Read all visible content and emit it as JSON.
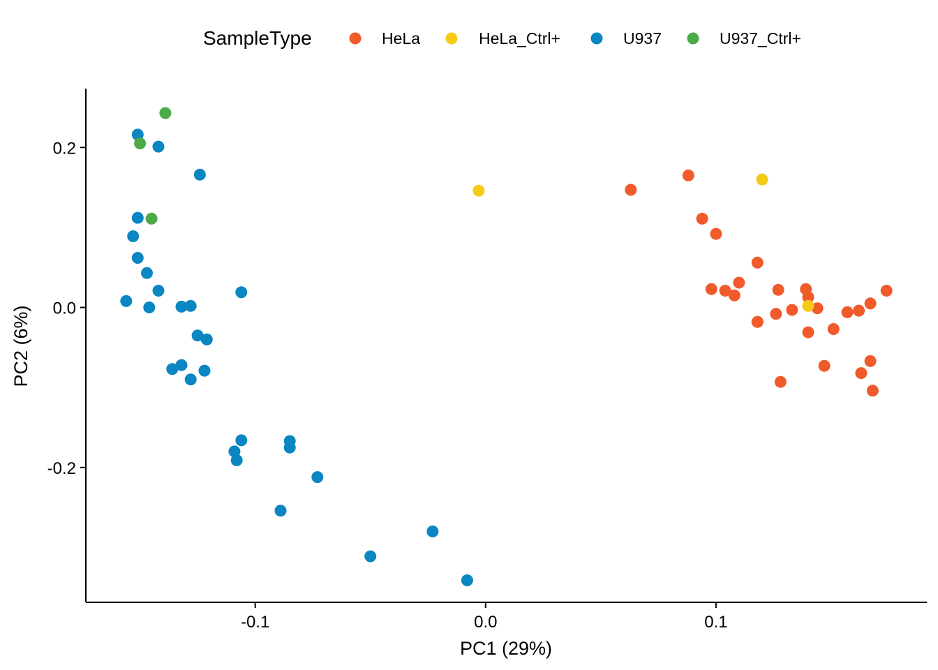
{
  "legend": {
    "title": "SampleType",
    "placement": "top",
    "entries": [
      {
        "label": "HeLa",
        "color": "#F15A2B"
      },
      {
        "label": "HeLa_Ctrl+",
        "color": "#F6C915"
      },
      {
        "label": "U937",
        "color": "#0A86C2"
      },
      {
        "label": "U937_Ctrl+",
        "color": "#4CAA48"
      }
    ]
  },
  "chart_data": {
    "type": "scatter",
    "title": "",
    "xlabel": "PC1 (29%)",
    "ylabel": "PC2 (6%)",
    "xlim": [
      -0.1735,
      0.1915
    ],
    "ylim": [
      -0.3685,
      0.2735
    ],
    "xticks": [
      -0.1,
      0.0,
      0.1
    ],
    "xtick_labels": [
      "-0.1",
      "0.0",
      "0.1"
    ],
    "yticks": [
      -0.2,
      0.0,
      0.2
    ],
    "ytick_labels": [
      "-0.2",
      "0.0",
      "0.2"
    ],
    "grid": false,
    "series": [
      {
        "name": "HeLa",
        "color": "#F15A2B",
        "points": [
          [
            0.063,
            0.147
          ],
          [
            0.088,
            0.165
          ],
          [
            0.094,
            0.111
          ],
          [
            0.1,
            0.092
          ],
          [
            0.098,
            0.023
          ],
          [
            0.104,
            0.021
          ],
          [
            0.108,
            0.015
          ],
          [
            0.11,
            0.031
          ],
          [
            0.118,
            0.056
          ],
          [
            0.118,
            -0.018
          ],
          [
            0.118,
            -0.018
          ],
          [
            0.127,
            0.022
          ],
          [
            0.126,
            -0.008
          ],
          [
            0.128,
            -0.093
          ],
          [
            0.133,
            -0.003
          ],
          [
            0.139,
            0.023
          ],
          [
            0.14,
            0.013
          ],
          [
            0.14,
            -0.031
          ],
          [
            0.144,
            -0.001
          ],
          [
            0.147,
            -0.073
          ],
          [
            0.151,
            -0.027
          ],
          [
            0.157,
            -0.006
          ],
          [
            0.162,
            -0.004
          ],
          [
            0.163,
            -0.082
          ],
          [
            0.167,
            0.005
          ],
          [
            0.167,
            -0.067
          ],
          [
            0.168,
            -0.104
          ],
          [
            0.174,
            0.021
          ]
        ]
      },
      {
        "name": "HeLa_Ctrl+",
        "color": "#F6C915",
        "points": [
          [
            -0.003,
            0.146
          ],
          [
            0.12,
            0.16
          ],
          [
            0.14,
            0.002
          ]
        ]
      },
      {
        "name": "U937",
        "color": "#0A86C2",
        "points": [
          [
            -0.151,
            0.216
          ],
          [
            -0.142,
            0.201
          ],
          [
            -0.124,
            0.166
          ],
          [
            -0.151,
            0.112
          ],
          [
            -0.153,
            0.089
          ],
          [
            -0.151,
            0.062
          ],
          [
            -0.147,
            0.043
          ],
          [
            -0.142,
            0.021
          ],
          [
            -0.156,
            0.008
          ],
          [
            -0.146,
            0.0
          ],
          [
            -0.132,
            0.001
          ],
          [
            -0.128,
            0.002
          ],
          [
            -0.106,
            0.019
          ],
          [
            -0.125,
            -0.035
          ],
          [
            -0.121,
            -0.04
          ],
          [
            -0.136,
            -0.077
          ],
          [
            -0.132,
            -0.072
          ],
          [
            -0.128,
            -0.09
          ],
          [
            -0.122,
            -0.079
          ],
          [
            -0.106,
            -0.166
          ],
          [
            -0.109,
            -0.18
          ],
          [
            -0.108,
            -0.191
          ],
          [
            -0.085,
            -0.167
          ],
          [
            -0.085,
            -0.175
          ],
          [
            -0.073,
            -0.212
          ],
          [
            -0.089,
            -0.254
          ],
          [
            -0.05,
            -0.311
          ],
          [
            -0.023,
            -0.28
          ],
          [
            -0.008,
            -0.341
          ]
        ]
      },
      {
        "name": "U937_Ctrl+",
        "color": "#4CAA48",
        "points": [
          [
            -0.139,
            0.243
          ],
          [
            -0.15,
            0.205
          ],
          [
            -0.145,
            0.111
          ]
        ]
      }
    ]
  }
}
